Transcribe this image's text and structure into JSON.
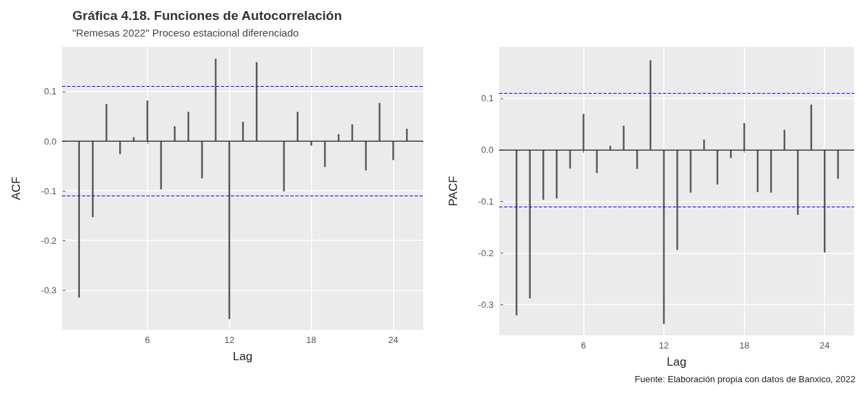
{
  "chart_data": [
    {
      "type": "bar",
      "title": "Gráfica 4.18. Funciones de Autocorrelación",
      "subtitle": "\"Remesas 2022\" Proceso estacional diferenciado",
      "xlabel": "Lag",
      "ylabel": "ACF",
      "x": [
        1,
        2,
        3,
        4,
        5,
        6,
        7,
        8,
        9,
        10,
        11,
        12,
        13,
        14,
        15,
        16,
        17,
        18,
        19,
        20,
        21,
        22,
        23,
        24,
        25
      ],
      "series": [
        {
          "color": "#595959",
          "values": [
            -0.315,
            -0.153,
            0.075,
            -0.026,
            0.008,
            0.082,
            -0.097,
            0.03,
            0.059,
            -0.075,
            0.166,
            -0.358,
            0.039,
            0.159,
            null,
            -0.101,
            0.059,
            -0.009,
            -0.052,
            0.014,
            0.034,
            -0.059,
            0.077,
            -0.038,
            0.025
          ]
        }
      ],
      "xlim": [
        -0.25,
        26.2
      ],
      "xticks": [
        6,
        12,
        18,
        24
      ],
      "ylim": [
        -0.38,
        0.19
      ],
      "yticks": [
        -0.3,
        -0.2,
        -0.1,
        {
          "value": 0,
          "label": "0.0"
        },
        0.1
      ],
      "ref_lines": [
        {
          "axis": "y",
          "value": 0,
          "label": null,
          "color": "#333333",
          "line_style": "solid"
        },
        {
          "axis": "y",
          "value": 0.11,
          "label": null,
          "color": "#0000ff",
          "line_style": "dashed"
        },
        {
          "axis": "y",
          "value": -0.11,
          "label": null,
          "color": "#0000ff",
          "line_style": "dashed"
        }
      ],
      "grid": true
    },
    {
      "type": "bar",
      "xlabel": "Lag",
      "ylabel": "PACF",
      "x": [
        1,
        2,
        3,
        4,
        5,
        6,
        7,
        8,
        9,
        10,
        11,
        12,
        13,
        14,
        15,
        16,
        17,
        18,
        19,
        20,
        21,
        22,
        23,
        24,
        25
      ],
      "series": [
        {
          "color": "#595959",
          "values": [
            -0.321,
            -0.288,
            -0.097,
            -0.094,
            -0.036,
            0.07,
            -0.045,
            0.008,
            0.047,
            -0.037,
            0.174,
            -0.338,
            -0.194,
            -0.083,
            0.02,
            -0.067,
            -0.016,
            0.052,
            -0.082,
            -0.083,
            0.039,
            -0.126,
            0.088,
            -0.199,
            -0.056
          ]
        }
      ],
      "xlim": [
        -0.3,
        26.2
      ],
      "xticks": [
        6,
        12,
        18,
        24
      ],
      "ylim": [
        -0.36,
        0.2
      ],
      "yticks": [
        -0.3,
        -0.2,
        -0.1,
        {
          "value": 0,
          "label": "0.0"
        },
        0.1
      ],
      "ref_lines": [
        {
          "axis": "y",
          "value": 0,
          "label": null,
          "color": "#333333",
          "line_style": "solid"
        },
        {
          "axis": "y",
          "value": 0.11,
          "label": null,
          "color": "#0000ff",
          "line_style": "dashed"
        },
        {
          "axis": "y",
          "value": -0.11,
          "label": null,
          "color": "#0000ff",
          "line_style": "dashed"
        }
      ],
      "grid": true,
      "annotations": [
        "Fuente: Elaboración propia con datos de Banxico, 2022"
      ]
    }
  ]
}
